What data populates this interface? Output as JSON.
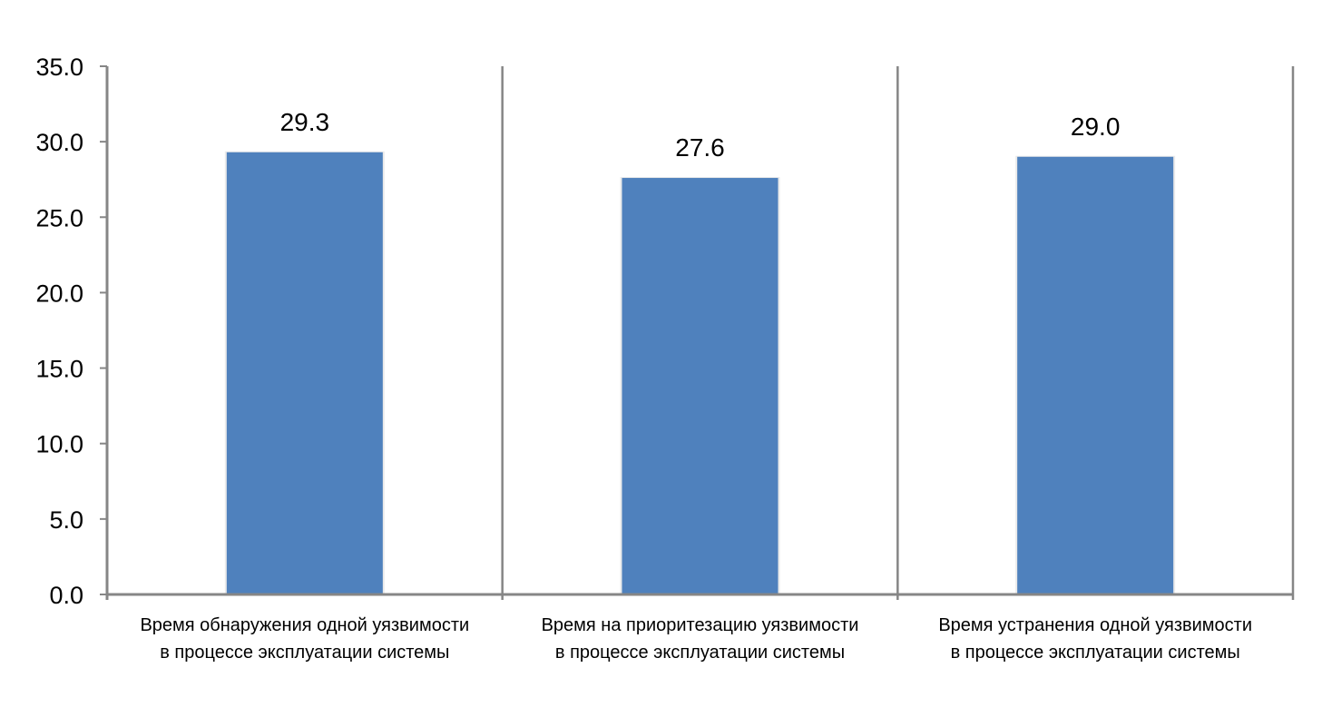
{
  "chart_data": {
    "type": "bar",
    "categories": [
      [
        "Время обнаружения одной уязвимости",
        "в процессе эксплуатации системы"
      ],
      [
        "Время на приоритезацию уязвимости",
        "в процессе эксплуатации системы"
      ],
      [
        "Время устранения одной уязвимости",
        "в процессе эксплуатации системы"
      ]
    ],
    "values": [
      29.3,
      27.6,
      29.0
    ],
    "value_labels": [
      "29.3",
      "27.6",
      "29.0"
    ],
    "yticks": [
      0,
      5,
      10,
      15,
      20,
      25,
      30,
      35
    ],
    "ytick_labels": [
      "0.0",
      "5.0",
      "10.0",
      "15.0",
      "20.0",
      "25.0",
      "30.0",
      "35.0"
    ],
    "ylim": [
      0,
      35
    ],
    "grid": false,
    "legend": "none",
    "title": "",
    "xlabel": "",
    "ylabel": "",
    "colors": {
      "bar": "#4F81BD",
      "axis": "#868686",
      "separator": "#868686"
    }
  }
}
